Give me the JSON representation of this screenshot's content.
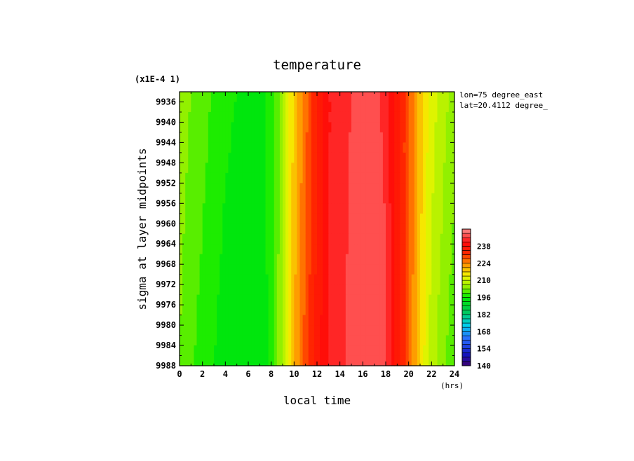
{
  "chart_data": {
    "type": "heatmap",
    "title": "temperature",
    "scale_note": "(x1E-4 1)",
    "xlabel": "local time",
    "xunit": "(hrs)",
    "ylabel": "sigma at layer midpoints",
    "xlim": [
      0,
      24
    ],
    "ylim": [
      9988,
      9934
    ],
    "x_ticks": [
      0,
      2,
      4,
      6,
      8,
      10,
      12,
      14,
      16,
      18,
      20,
      22,
      24
    ],
    "y_ticks": [
      9936,
      9940,
      9944,
      9948,
      9952,
      9956,
      9960,
      9964,
      9968,
      9972,
      9976,
      9980,
      9984,
      9988
    ],
    "annotation": [
      "lon=75 degree_east",
      "lat=20.4112 degree_"
    ],
    "colorbar": {
      "min": 140,
      "max": 252,
      "step": 3.5,
      "tick_values": [
        140,
        154,
        168,
        182,
        196,
        210,
        224,
        238
      ]
    },
    "profile": {
      "hours": [
        0,
        1,
        2,
        3,
        4,
        5,
        6,
        7,
        8,
        8.5,
        9,
        9.5,
        10,
        10.5,
        11,
        11.5,
        12,
        12.5,
        13,
        13.5,
        14,
        15,
        16,
        17,
        18,
        18.5,
        19,
        19.5,
        20,
        20.5,
        21,
        21.5,
        22,
        23,
        24
      ],
      "top_values": [
        205,
        203,
        201,
        199,
        197,
        196,
        195,
        195,
        197,
        201,
        206,
        212,
        218,
        222,
        226,
        230,
        234,
        238,
        241,
        243,
        244,
        245,
        247,
        246,
        244,
        240,
        236,
        232,
        228,
        224,
        219,
        215,
        212,
        208,
        205
      ],
      "bottom_values": [
        203,
        200,
        198,
        196,
        194,
        193,
        193,
        194,
        197,
        202,
        208,
        214,
        220,
        225,
        229,
        233,
        236,
        239,
        241,
        243,
        244,
        246,
        247,
        247,
        246,
        241,
        236,
        232,
        228,
        222,
        217,
        212,
        208,
        204,
        200
      ]
    }
  }
}
